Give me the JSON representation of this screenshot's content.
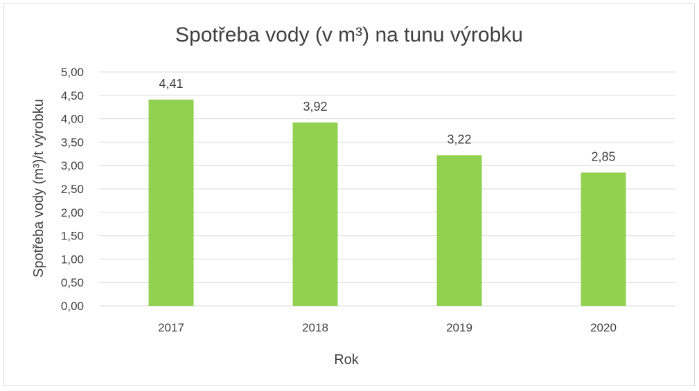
{
  "chart_data": {
    "type": "bar",
    "title": "Spotřeba vody (v m³) na tunu výrobku",
    "xlabel": "Rok",
    "ylabel": "Spotřeba vody (m³)/t výrobku",
    "categories": [
      "2017",
      "2018",
      "2019",
      "2020"
    ],
    "series": [
      {
        "values": [
          4.41,
          3.92,
          3.22,
          2.85
        ],
        "data_labels": [
          "4,41",
          "3,92",
          "3,22",
          "2,85"
        ]
      }
    ],
    "ylim": [
      0,
      5
    ],
    "yticks": [
      0,
      0.5,
      1,
      1.5,
      2,
      2.5,
      3,
      3.5,
      4,
      4.5,
      5
    ],
    "ytick_labels": [
      "0,00",
      "0,50",
      "1,00",
      "1,50",
      "2,00",
      "2,50",
      "3,00",
      "3,50",
      "4,00",
      "4,50",
      "5,00"
    ],
    "grid": true,
    "legend": "none",
    "colors": {
      "bar": "#92d050",
      "gridline": "#d9d9d9",
      "text": "#404040"
    }
  }
}
